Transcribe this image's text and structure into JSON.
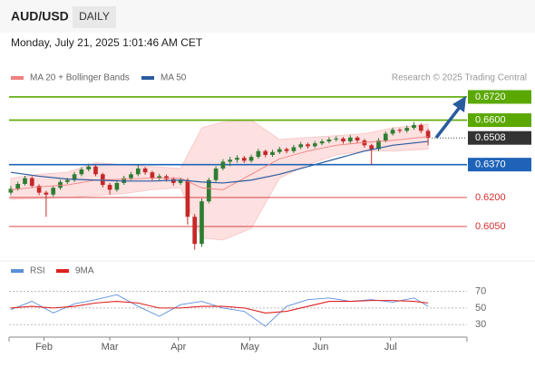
{
  "header": {
    "symbol": "AUD/USD",
    "period": "DAILY",
    "timestamp": "Monday, July 21, 2025 1:01:46 AM CET",
    "credit": "Research © 2025 Trading Central"
  },
  "chart_data": [
    {
      "type": "candlestick",
      "xlim": [
        -0.5,
        64.5
      ],
      "ylim": [
        0.5895,
        0.6823
      ],
      "up_color": "#2e7d32",
      "down_color": "#c62828",
      "ohlc": [
        [
          0.6225,
          0.626,
          0.6212,
          0.6245
        ],
        [
          0.6245,
          0.6282,
          0.6235,
          0.627
        ],
        [
          0.627,
          0.6312,
          0.6262,
          0.63
        ],
        [
          0.63,
          0.631,
          0.625,
          0.626
        ],
        [
          0.626,
          0.6268,
          0.6212,
          0.6225
        ],
        [
          0.6225,
          0.6235,
          0.61,
          0.6215
        ],
        [
          0.6215,
          0.6262,
          0.6205,
          0.625
        ],
        [
          0.625,
          0.6292,
          0.624,
          0.628
        ],
        [
          0.628,
          0.6302,
          0.627,
          0.629
        ],
        [
          0.629,
          0.6332,
          0.628,
          0.632
        ],
        [
          0.632,
          0.6357,
          0.631,
          0.6345
        ],
        [
          0.6345,
          0.6375,
          0.6335,
          0.636
        ],
        [
          0.636,
          0.6368,
          0.631,
          0.632
        ],
        [
          0.632,
          0.6328,
          0.6252,
          0.6265
        ],
        [
          0.6265,
          0.6275,
          0.6215,
          0.624
        ],
        [
          0.624,
          0.6288,
          0.623,
          0.6275
        ],
        [
          0.6275,
          0.6312,
          0.6265,
          0.63
        ],
        [
          0.63,
          0.6332,
          0.629,
          0.632
        ],
        [
          0.632,
          0.6368,
          0.631,
          0.635
        ],
        [
          0.635,
          0.6358,
          0.6318,
          0.633
        ],
        [
          0.633,
          0.6338,
          0.6288,
          0.63
        ],
        [
          0.63,
          0.6322,
          0.629,
          0.631
        ],
        [
          0.631,
          0.6318,
          0.6283,
          0.6295
        ],
        [
          0.6295,
          0.6305,
          0.6262,
          0.6275
        ],
        [
          0.6275,
          0.6302,
          0.6265,
          0.629
        ],
        [
          0.629,
          0.63,
          0.606,
          0.61
        ],
        [
          0.61,
          0.6115,
          0.593,
          0.596
        ],
        [
          0.596,
          0.6195,
          0.5945,
          0.618
        ],
        [
          0.618,
          0.6302,
          0.617,
          0.629
        ],
        [
          0.629,
          0.6362,
          0.628,
          0.635
        ],
        [
          0.635,
          0.6398,
          0.634,
          0.6385
        ],
        [
          0.6385,
          0.641,
          0.6362,
          0.6395
        ],
        [
          0.6395,
          0.6418,
          0.638,
          0.6405
        ],
        [
          0.6405,
          0.6415,
          0.6378,
          0.639
        ],
        [
          0.639,
          0.6422,
          0.638,
          0.641
        ],
        [
          0.641,
          0.6452,
          0.64,
          0.644
        ],
        [
          0.644,
          0.6448,
          0.6408,
          0.642
        ],
        [
          0.642,
          0.6447,
          0.641,
          0.6435
        ],
        [
          0.6435,
          0.6462,
          0.6425,
          0.645
        ],
        [
          0.645,
          0.6458,
          0.6428,
          0.644
        ],
        [
          0.644,
          0.6472,
          0.643,
          0.646
        ],
        [
          0.646,
          0.6487,
          0.645,
          0.6475
        ],
        [
          0.6475,
          0.6483,
          0.6453,
          0.6465
        ],
        [
          0.6465,
          0.6492,
          0.6455,
          0.648
        ],
        [
          0.648,
          0.6502,
          0.647,
          0.649
        ],
        [
          0.649,
          0.6512,
          0.648,
          0.65
        ],
        [
          0.65,
          0.6517,
          0.649,
          0.6505
        ],
        [
          0.6505,
          0.6513,
          0.6478,
          0.649
        ],
        [
          0.649,
          0.6522,
          0.648,
          0.651
        ],
        [
          0.651,
          0.6518,
          0.6483,
          0.6495
        ],
        [
          0.6495,
          0.6503,
          0.6458,
          0.647
        ],
        [
          0.647,
          0.6478,
          0.637,
          0.645
        ],
        [
          0.645,
          0.6507,
          0.644,
          0.6495
        ],
        [
          0.6495,
          0.6542,
          0.6485,
          0.653
        ],
        [
          0.653,
          0.6562,
          0.652,
          0.655
        ],
        [
          0.655,
          0.6558,
          0.6533,
          0.6545
        ],
        [
          0.6545,
          0.6572,
          0.6535,
          0.656
        ],
        [
          0.656,
          0.659,
          0.655,
          0.6575
        ],
        [
          0.6575,
          0.6583,
          0.6533,
          0.6545
        ],
        [
          0.6545,
          0.6555,
          0.647,
          0.6508
        ]
      ],
      "series": [
        {
          "name": "MA 20 + Bollinger Bands",
          "color": "#f08080",
          "band_color": "#fde0e0",
          "x": [
            0,
            4,
            8,
            12,
            16,
            20,
            24,
            27,
            30,
            34,
            38,
            42,
            46,
            50,
            54,
            59
          ],
          "values": [
            0.624,
            0.6255,
            0.6265,
            0.629,
            0.6295,
            0.63,
            0.63,
            0.625,
            0.624,
            0.632,
            0.64,
            0.644,
            0.647,
            0.6485,
            0.6495,
            0.6515
          ],
          "upper": [
            0.63,
            0.632,
            0.633,
            0.638,
            0.637,
            0.636,
            0.635,
            0.656,
            0.659,
            0.66,
            0.65,
            0.651,
            0.652,
            0.653,
            0.656,
            0.658
          ],
          "lower": [
            0.619,
            0.6195,
            0.62,
            0.621,
            0.622,
            0.624,
            0.625,
            0.599,
            0.598,
            0.604,
            0.63,
            0.637,
            0.642,
            0.644,
            0.644,
            0.645
          ]
        },
        {
          "name": "MA 50",
          "color": "#2a5b9e",
          "x": [
            0,
            4,
            8,
            12,
            16,
            20,
            24,
            27,
            30,
            34,
            38,
            42,
            46,
            50,
            54,
            59
          ],
          "values": [
            0.633,
            0.631,
            0.6295,
            0.629,
            0.6285,
            0.6285,
            0.629,
            0.628,
            0.6275,
            0.629,
            0.632,
            0.636,
            0.64,
            0.644,
            0.647,
            0.649
          ]
        }
      ],
      "levels": [
        {
          "value": 0.672,
          "label": "0.6720",
          "color": "#5aa800",
          "style": "box",
          "line": "full"
        },
        {
          "value": 0.66,
          "label": "0.6600",
          "color": "#5aa800",
          "style": "box",
          "line": "full"
        },
        {
          "value": 0.6508,
          "label": "0.6508",
          "color": "#333333",
          "style": "box",
          "line": "dotted"
        },
        {
          "value": 0.637,
          "label": "0.6370",
          "color": "#1e63b8",
          "style": "box",
          "line": "full"
        },
        {
          "value": 0.62,
          "label": "0.6200",
          "color": "#d32f2f",
          "style": "text",
          "line": "full"
        },
        {
          "value": 0.605,
          "label": "0.6050",
          "color": "#d32f2f",
          "style": "text",
          "line": "full"
        }
      ]
    },
    {
      "type": "line",
      "xlim": [
        -0.5,
        64.5
      ],
      "ylim": [
        15,
        88
      ],
      "yticks": [
        70,
        50,
        30
      ],
      "xticks": [
        {
          "value": 4.7,
          "label": "Feb"
        },
        {
          "value": 14,
          "label": "Mar"
        },
        {
          "value": 23.7,
          "label": "Apr"
        },
        {
          "value": 33.8,
          "label": "May"
        },
        {
          "value": 43.8,
          "label": "Jun"
        },
        {
          "value": 53.7,
          "label": "Jul"
        }
      ],
      "series": [
        {
          "name": "RSI",
          "color": "#5b8fd9",
          "x": [
            0,
            3,
            6,
            9,
            12,
            15,
            18,
            21,
            24,
            27,
            30,
            33,
            36,
            39,
            42,
            45,
            48,
            51,
            54,
            57,
            59
          ],
          "values": [
            48,
            58,
            44,
            55,
            60,
            66,
            52,
            40,
            54,
            58,
            50,
            46,
            28,
            52,
            60,
            62,
            58,
            60,
            57,
            62,
            52
          ]
        },
        {
          "name": "9MA",
          "color": "#e02020",
          "x": [
            0,
            3,
            6,
            9,
            12,
            15,
            18,
            21,
            24,
            27,
            30,
            33,
            36,
            39,
            42,
            45,
            48,
            51,
            54,
            57,
            59
          ],
          "values": [
            50,
            52,
            50,
            52,
            56,
            58,
            56,
            50,
            50,
            52,
            52,
            50,
            44,
            46,
            52,
            58,
            58,
            59,
            59,
            58,
            56
          ]
        }
      ]
    }
  ]
}
